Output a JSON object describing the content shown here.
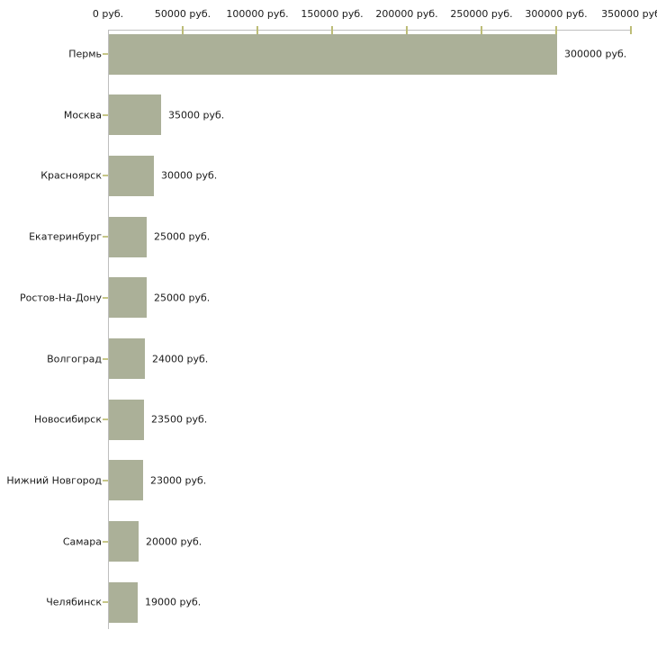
{
  "chart_data": {
    "type": "bar",
    "orientation": "horizontal",
    "title": "",
    "categories": [
      "Пермь",
      "Москва",
      "Красноярск",
      "Екатеринбург",
      "Ростов-На-Дону",
      "Волгоград",
      "Новосибирск",
      "Нижний Новгород",
      "Самара",
      "Челябинск"
    ],
    "values": [
      300000,
      35000,
      30000,
      25000,
      25000,
      24000,
      23500,
      23000,
      20000,
      19000
    ],
    "bar_value_labels": [
      "300000 руб.",
      "35000 руб.",
      "30000 руб.",
      "25000 руб.",
      "25000 руб.",
      "24000 руб.",
      "23500 руб.",
      "23000 руб.",
      "20000 руб.",
      "19000 руб."
    ],
    "x_axis": {
      "position": "top",
      "lim": [
        0,
        350000
      ],
      "ticks": [
        0,
        50000,
        100000,
        150000,
        200000,
        250000,
        300000,
        350000
      ],
      "tick_labels": [
        "0 руб.",
        "50000 руб.",
        "100000 руб.",
        "150000 руб.",
        "200000 руб.",
        "250000 руб.",
        "300000 руб.",
        "350000 руб"
      ]
    },
    "legend": "none",
    "grid": false,
    "colors": {
      "bar": "#abb098",
      "axis": "#bfbfbf",
      "tick": "#bdbd77",
      "text": "#1a1a1a",
      "background": "#ffffff"
    }
  }
}
